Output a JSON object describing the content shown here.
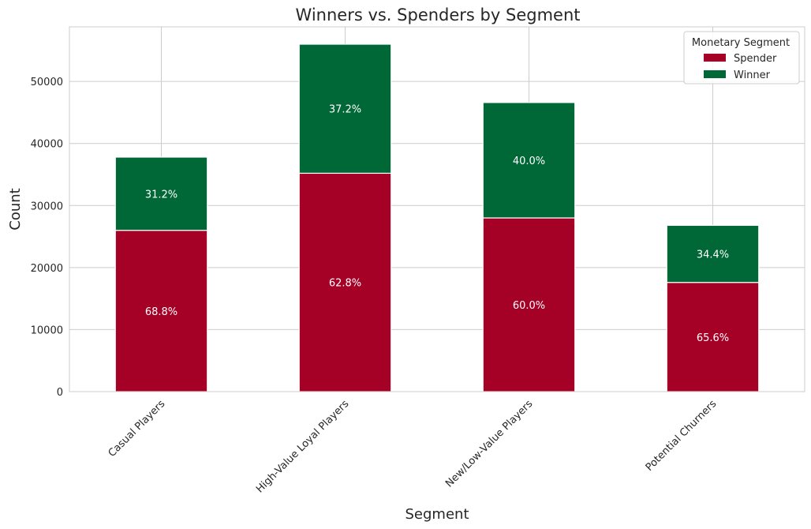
{
  "chart_data": {
    "type": "bar",
    "stacked": true,
    "title": "Winners vs. Spenders by Segment",
    "xlabel": "Segment",
    "ylabel": "Count",
    "categories": [
      "Casual Players",
      "High-Value Loyal Players",
      "New/Low-Value Players",
      "Potential Churners"
    ],
    "series": [
      {
        "name": "Spender",
        "color": "#a50026",
        "values": [
          26000,
          35200,
          28000,
          17600
        ],
        "labels": [
          "68.8%",
          "62.8%",
          "60.0%",
          "65.6%"
        ]
      },
      {
        "name": "Winner",
        "color": "#006837",
        "values": [
          11800,
          20800,
          18600,
          9200
        ],
        "labels": [
          "31.2%",
          "37.2%",
          "40.0%",
          "34.4%"
        ]
      }
    ],
    "ylim": [
      0,
      58800
    ],
    "yticks": [
      0,
      10000,
      20000,
      30000,
      40000,
      50000
    ],
    "grid": true,
    "legend": {
      "title": "Monetary Segment",
      "position": "top-right"
    }
  }
}
